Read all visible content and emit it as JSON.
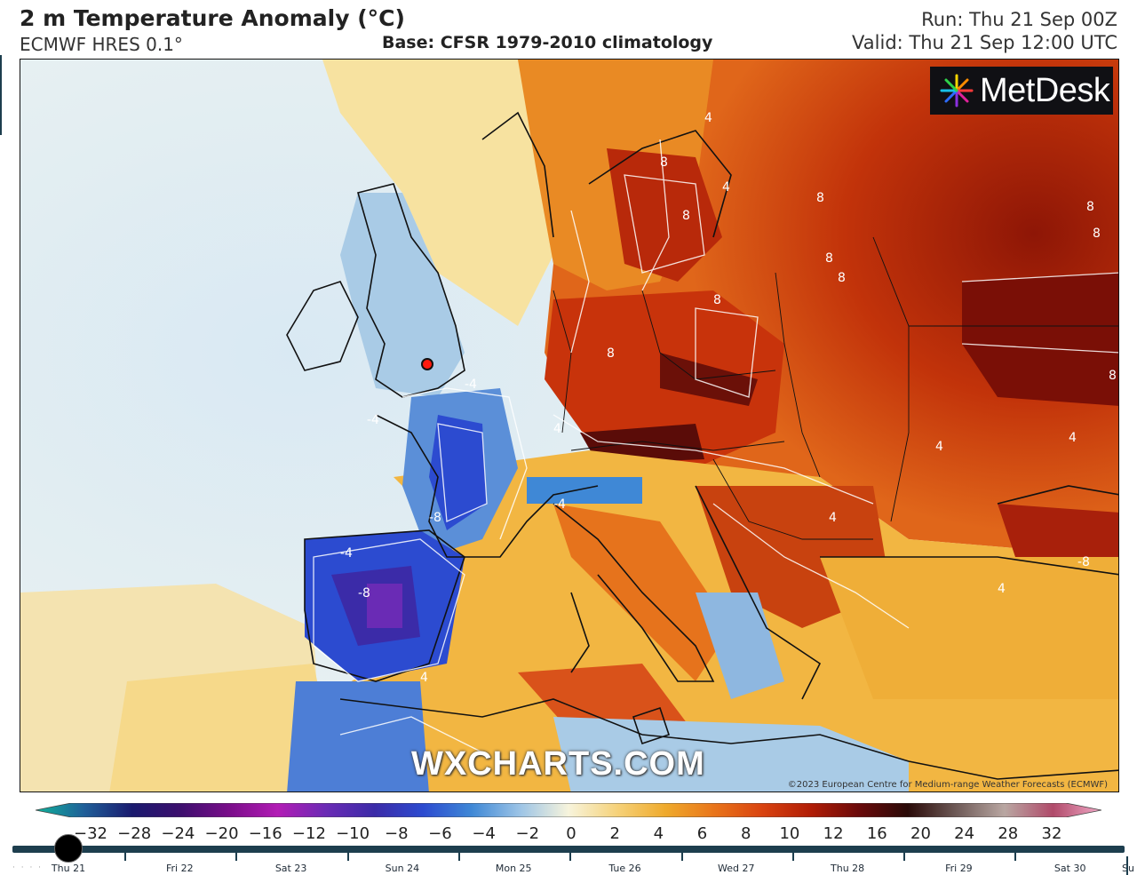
{
  "header": {
    "title": "2 m Temperature Anomaly (°C)",
    "model": "ECMWF HRES 0.1°",
    "base": "Base: CFSR 1979-2010 climatology",
    "run": "Run: Thu 21 Sep 00Z",
    "valid": "Valid: Thu 21 Sep 12:00 UTC"
  },
  "map": {
    "logo_text": "MetDesk",
    "watermark": "WXCHARTS.COM",
    "copyright": "©2023 European Centre for Medium-range Weather Forecasts (ECMWF)",
    "marker": "red-location-dot",
    "contour_labels": [
      "8",
      "8",
      "8",
      "8",
      "8",
      "8",
      "8",
      "8",
      "8",
      "8",
      "4",
      "4",
      "4",
      "4",
      "4",
      "4",
      "4",
      "4",
      "-4",
      "-4",
      "-4",
      "-4",
      "-8",
      "-8",
      "-8"
    ]
  },
  "colorbar": {
    "labels": [
      "-32",
      "-28",
      "-24",
      "-20",
      "-16",
      "-12",
      "-10",
      "-8",
      "-6",
      "-4",
      "-2",
      "0",
      "2",
      "4",
      "6",
      "8",
      "10",
      "12",
      "16",
      "20",
      "24",
      "28",
      "32"
    ],
    "colors": [
      "#10b39a",
      "#1f5f99",
      "#1a1a6e",
      "#3d0f6e",
      "#7a0d8a",
      "#b21cb5",
      "#6a2bb5",
      "#3b2ba8",
      "#2c4bd0",
      "#3f88d6",
      "#9cc4e6",
      "#f7f4dc",
      "#f6d27a",
      "#efaa2c",
      "#e9751a",
      "#d94310",
      "#b11d06",
      "#6a0a0a",
      "#2a0a08",
      "#6e5a57",
      "#b9a7a2",
      "#b04a6a",
      "#f3aac8"
    ]
  },
  "timeline": {
    "days": [
      "Thu 21",
      "Fri 22",
      "Sat 23",
      "Sun 24",
      "Mon 25",
      "Tue 26",
      "Wed 27",
      "Thu 28",
      "Fri 29",
      "Sat 30",
      "Su"
    ],
    "selected": "Thu 21"
  }
}
